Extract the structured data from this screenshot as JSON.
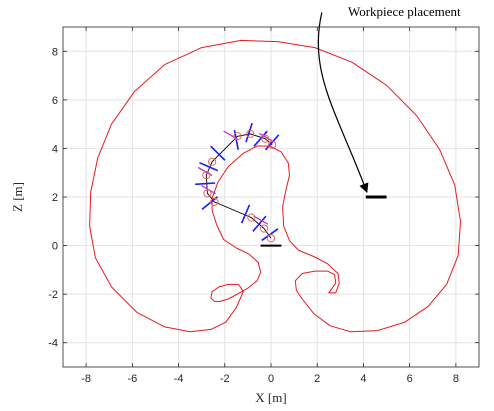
{
  "chart_data": {
    "type": "line",
    "xlabel": "X [m]",
    "ylabel": "Z [m]",
    "xlim": [
      -9,
      9
    ],
    "ylim": [
      -5,
      9
    ],
    "xticks": [
      -8,
      -6,
      -4,
      -2,
      0,
      2,
      4,
      6,
      8
    ],
    "yticks": [
      -4,
      -2,
      0,
      2,
      4,
      6,
      8
    ],
    "grid": true,
    "annotation": {
      "text": "Workpiece placement",
      "arrow_from": [
        2.2,
        9.6
      ],
      "arrow_to": [
        4.15,
        2.2
      ]
    },
    "colors": {
      "workspace": "#e8191e",
      "links": "#000000",
      "joints": "#e0665f",
      "joint_axes": "#1a1aff",
      "tool_frames": "#cc33cc",
      "base": "#000000",
      "workpiece": "#000000",
      "grid": "#e3e3e3",
      "axes": "#262626"
    },
    "workspace_boundary": [
      [
        -1.2,
        -1.9
      ],
      [
        -1.5,
        -2.55
      ],
      [
        -1.95,
        -3.15
      ],
      [
        -2.6,
        -3.45
      ],
      [
        -3.5,
        -3.55
      ],
      [
        -4.6,
        -3.35
      ],
      [
        -5.8,
        -2.75
      ],
      [
        -6.9,
        -1.7
      ],
      [
        -7.6,
        -0.5
      ],
      [
        -7.85,
        0.8
      ],
      [
        -7.8,
        2.2
      ],
      [
        -7.5,
        3.6
      ],
      [
        -6.9,
        5.0
      ],
      [
        -5.9,
        6.35
      ],
      [
        -4.6,
        7.45
      ],
      [
        -3.0,
        8.15
      ],
      [
        -1.3,
        8.45
      ],
      [
        0.3,
        8.4
      ],
      [
        1.9,
        8.15
      ],
      [
        3.5,
        7.55
      ],
      [
        5.0,
        6.6
      ],
      [
        6.3,
        5.35
      ],
      [
        7.3,
        3.95
      ],
      [
        7.95,
        2.5
      ],
      [
        8.2,
        1.0
      ],
      [
        8.1,
        -0.4
      ],
      [
        7.6,
        -1.6
      ],
      [
        6.8,
        -2.5
      ],
      [
        5.8,
        -3.15
      ],
      [
        4.6,
        -3.5
      ],
      [
        3.45,
        -3.55
      ],
      [
        2.55,
        -3.3
      ],
      [
        1.85,
        -2.8
      ],
      [
        1.35,
        -2.2
      ],
      [
        1.1,
        -1.85
      ],
      [
        1.05,
        -1.45
      ],
      [
        1.35,
        -1.15
      ],
      [
        1.9,
        -1.05
      ],
      [
        2.45,
        -1.05
      ],
      [
        2.75,
        -1.2
      ],
      [
        2.8,
        -1.55
      ],
      [
        2.5,
        -1.95
      ],
      [
        2.8,
        -1.95
      ],
      [
        2.95,
        -1.55
      ],
      [
        2.9,
        -1.15
      ],
      [
        2.45,
        -0.75
      ],
      [
        1.85,
        -0.45
      ],
      [
        1.2,
        -0.2
      ],
      [
        0.8,
        0.2
      ],
      [
        0.55,
        0.8
      ],
      [
        0.5,
        1.6
      ],
      [
        0.65,
        2.3
      ],
      [
        0.8,
        2.9
      ],
      [
        0.75,
        3.4
      ],
      [
        0.45,
        3.85
      ],
      [
        -0.05,
        4.1
      ],
      [
        -0.6,
        4.1
      ],
      [
        -1.2,
        3.8
      ],
      [
        -1.85,
        3.25
      ],
      [
        -2.3,
        2.6
      ],
      [
        -2.55,
        1.95
      ],
      [
        -2.55,
        1.45
      ],
      [
        -2.35,
        0.85
      ],
      [
        -2.05,
        0.25
      ],
      [
        -1.5,
        -0.1
      ],
      [
        -0.95,
        -0.35
      ],
      [
        -0.55,
        -0.7
      ],
      [
        -0.45,
        -1.1
      ],
      [
        -0.6,
        -1.45
      ],
      [
        -1.0,
        -1.75
      ],
      [
        -1.45,
        -2.0
      ],
      [
        -1.85,
        -2.2
      ],
      [
        -2.2,
        -2.3
      ],
      [
        -2.45,
        -2.3
      ],
      [
        -2.6,
        -2.15
      ],
      [
        -2.55,
        -1.9
      ],
      [
        -2.25,
        -1.7
      ],
      [
        -1.85,
        -1.6
      ],
      [
        -1.4,
        -1.6
      ],
      [
        -1.2,
        -1.9
      ]
    ],
    "robot_joints": [
      [
        0.0,
        0.3
      ],
      [
        -0.3,
        0.7
      ],
      [
        -0.85,
        1.15
      ],
      [
        -2.45,
        1.8
      ],
      [
        -2.75,
        2.15
      ],
      [
        -2.8,
        2.9
      ],
      [
        -2.55,
        3.45
      ],
      [
        -1.45,
        4.5
      ],
      [
        -0.9,
        4.6
      ],
      [
        -0.25,
        4.4
      ],
      [
        0.05,
        4.15
      ]
    ],
    "joint_axes": [
      [
        -0.05,
        0.45
      ],
      [
        -0.5,
        0.9
      ],
      [
        -1.1,
        1.3
      ],
      [
        -2.65,
        1.75
      ],
      [
        -2.85,
        2.55
      ],
      [
        -2.7,
        3.25
      ],
      [
        -2.3,
        3.8
      ],
      [
        -1.5,
        4.35
      ],
      [
        -0.95,
        4.65
      ],
      [
        -0.45,
        4.4
      ],
      [
        0.05,
        4.25
      ]
    ],
    "tool_frames": [
      [
        -0.45,
        1.05
      ],
      [
        -2.7,
        2.3
      ],
      [
        -2.85,
        3.05
      ],
      [
        -1.75,
        4.55
      ],
      [
        -0.2,
        4.45
      ]
    ],
    "base": {
      "x": [
        -0.45,
        0.45
      ],
      "z": 0
    },
    "workpiece": {
      "x": [
        4.1,
        5.0
      ],
      "z": 2.0
    }
  }
}
